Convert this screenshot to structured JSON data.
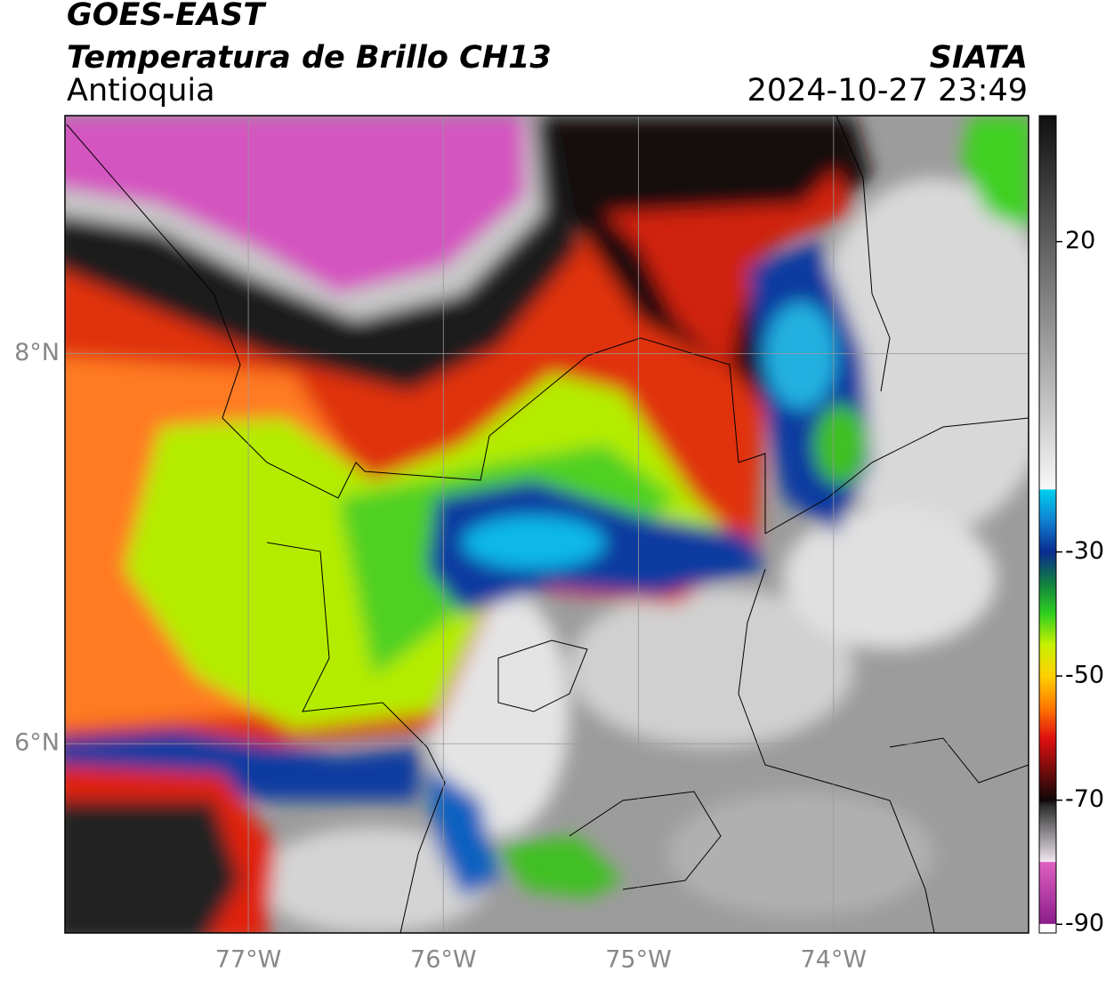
{
  "header": {
    "title": "GOES-EAST",
    "subtitle": "Temperatura de Brillo CH13",
    "region": "Antioquia",
    "source": "SIATA",
    "timestamp": "2024-10-27 23:49"
  },
  "map": {
    "xlim": [
      -77.94,
      -73
    ],
    "ylim": [
      5.03,
      9.22
    ],
    "xticks": [
      {
        "value": -77,
        "label": "77°W"
      },
      {
        "value": -76,
        "label": "76°W"
      },
      {
        "value": -75,
        "label": "75°W"
      },
      {
        "value": -74,
        "label": "74°W"
      }
    ],
    "yticks": [
      {
        "value": 8,
        "label": "8°N"
      },
      {
        "value": 6,
        "label": "6°N"
      }
    ],
    "grid": true
  },
  "colorbar": {
    "lim": [
      -91.4,
      40.3
    ],
    "ticks": [
      20,
      -30,
      -50,
      -70,
      -90
    ],
    "colormap": [
      {
        "value": -91.4,
        "color": "#ffffff"
      },
      {
        "value": -90,
        "color": "#ffffff"
      },
      {
        "value": -89.9,
        "color": "#8b1e8b"
      },
      {
        "value": -80,
        "color": "#e060c0"
      },
      {
        "value": -79.9,
        "color": "#f0e8f0"
      },
      {
        "value": -71,
        "color": "#303030"
      },
      {
        "value": -70,
        "color": "#100808"
      },
      {
        "value": -60,
        "color": "#e01010"
      },
      {
        "value": -55,
        "color": "#ff7a00"
      },
      {
        "value": -50,
        "color": "#ffd000"
      },
      {
        "value": -45,
        "color": "#c8f000"
      },
      {
        "value": -40,
        "color": "#30d020"
      },
      {
        "value": -35,
        "color": "#108040"
      },
      {
        "value": -30,
        "color": "#0a2a90"
      },
      {
        "value": -25,
        "color": "#1080d0"
      },
      {
        "value": -20,
        "color": "#00d0f0"
      },
      {
        "value": -19.9,
        "color": "#f8f8f8"
      },
      {
        "value": 40.3,
        "color": "#101010"
      }
    ]
  }
}
